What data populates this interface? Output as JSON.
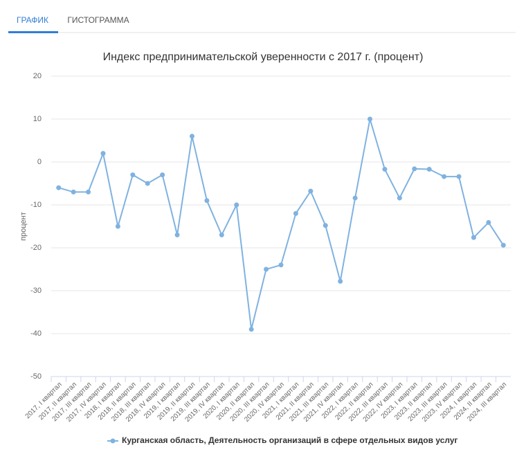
{
  "tabs": [
    "ГРАФИК",
    "ГИСТОГРАММА"
  ],
  "chart_data": {
    "type": "line",
    "title": "Индекс предпринимательской уверенности с 2017 г. (процент)",
    "y_label": "процент",
    "categories": [
      "2017, I квартал",
      "2017, II квартал",
      "2017, III квартал",
      "2017, IV квартал",
      "2018, I квартал",
      "2018, II квартал",
      "2018, III квартал",
      "2018, IV квартал",
      "2019, I квартал",
      "2019, II квартал",
      "2019, III квартал",
      "2019, IV квартал",
      "2020, I квартал",
      "2020, II квартал",
      "2020, III квартал",
      "2020, IV квартал",
      "2021, I квартал",
      "2021, II квартал",
      "2021, III квартал",
      "2021, IV квартал",
      "2022, I квартал",
      "2022, II квартал",
      "2022, III квартал",
      "2022, IV квартал",
      "2023, I квартал",
      "2023, II квартал",
      "2023, III квартал",
      "2023, IV квартал",
      "2024, I квартал",
      "2024, II квартал",
      "2024, III квартал"
    ],
    "series": [
      {
        "name": "Курганская область, Деятельность организаций в сфере отдельных видов услуг",
        "color": "#7fb2e0",
        "values": [
          -6,
          -7,
          -7,
          2,
          -15,
          -3,
          -5,
          -3,
          -17,
          6,
          -9,
          -17,
          -10,
          -39,
          -25,
          -24,
          -12,
          -6.8,
          -14.8,
          -27.8,
          -8.4,
          10,
          -1.7,
          -8.4,
          -1.6,
          -1.7,
          -3.4,
          -3.4,
          -17.6,
          -14.1,
          -19.4
        ]
      }
    ],
    "ylim": [
      -50,
      20
    ],
    "yticks": [
      -50,
      -40,
      -30,
      -20,
      -10,
      0,
      10,
      20
    ],
    "grid": true
  }
}
